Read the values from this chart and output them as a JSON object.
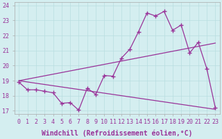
{
  "xlabel": "Windchill (Refroidissement éolien,°C)",
  "background_color": "#d4eef0",
  "line_color": "#993399",
  "xlim": [
    -0.5,
    23.5
  ],
  "ylim": [
    16.8,
    24.2
  ],
  "yticks": [
    17,
    18,
    19,
    20,
    21,
    22,
    23,
    24
  ],
  "xticks": [
    0,
    1,
    2,
    3,
    4,
    5,
    6,
    7,
    8,
    9,
    10,
    11,
    12,
    13,
    14,
    15,
    16,
    17,
    18,
    19,
    20,
    21,
    22,
    23
  ],
  "series1_x": [
    0,
    1,
    2,
    3,
    4,
    5,
    6,
    7,
    8,
    9,
    10,
    11,
    12,
    13,
    14,
    15,
    16,
    17,
    18,
    19,
    20,
    21,
    22,
    23
  ],
  "series1_y": [
    18.9,
    18.4,
    18.4,
    18.3,
    18.2,
    17.5,
    17.55,
    17.05,
    18.5,
    18.1,
    19.35,
    19.3,
    20.5,
    21.1,
    22.25,
    23.5,
    23.3,
    23.6,
    22.35,
    22.7,
    20.85,
    21.55,
    19.8,
    17.2
  ],
  "series2_x": [
    0,
    23
  ],
  "series2_y": [
    19.0,
    21.5
  ],
  "series3_x": [
    0,
    23
  ],
  "series3_y": [
    19.0,
    17.1
  ],
  "grid_color": "#b8dde0",
  "tick_fontsize": 6,
  "xlabel_fontsize": 7
}
